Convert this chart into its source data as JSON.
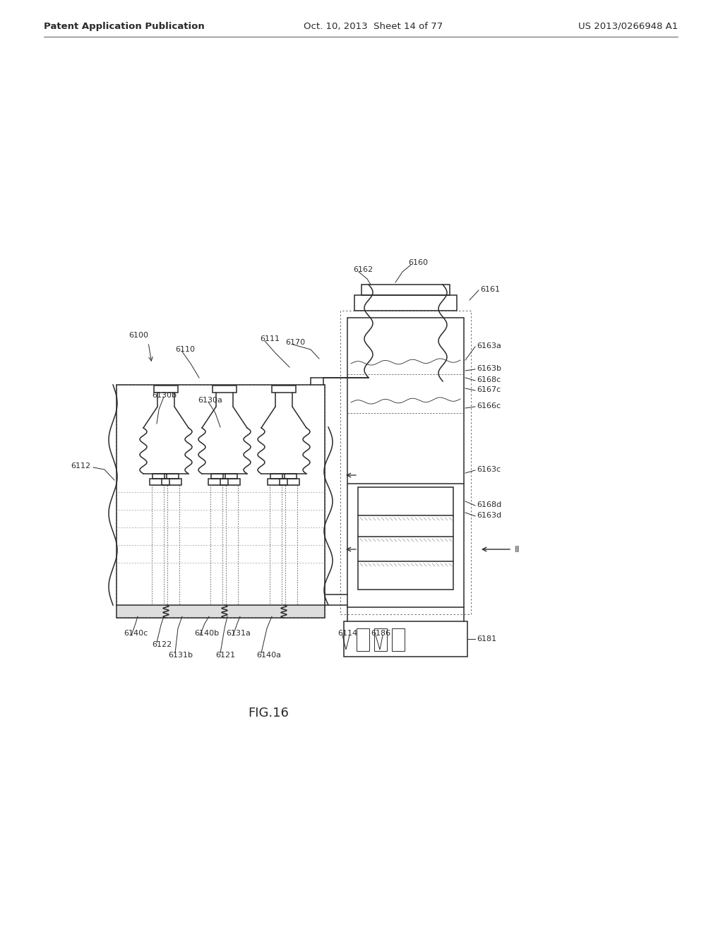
{
  "bg_color": "#ffffff",
  "header_left": "Patent Application Publication",
  "header_mid": "Oct. 10, 2013  Sheet 14 of 77",
  "header_right": "US 2013/0266948 A1",
  "figure_label": "FIG.16",
  "line_color": "#2a2a2a",
  "label_color": "#2a2a2a",
  "font_size_header": 9.5,
  "font_size_label": 8.0,
  "font_size_fig": 13
}
